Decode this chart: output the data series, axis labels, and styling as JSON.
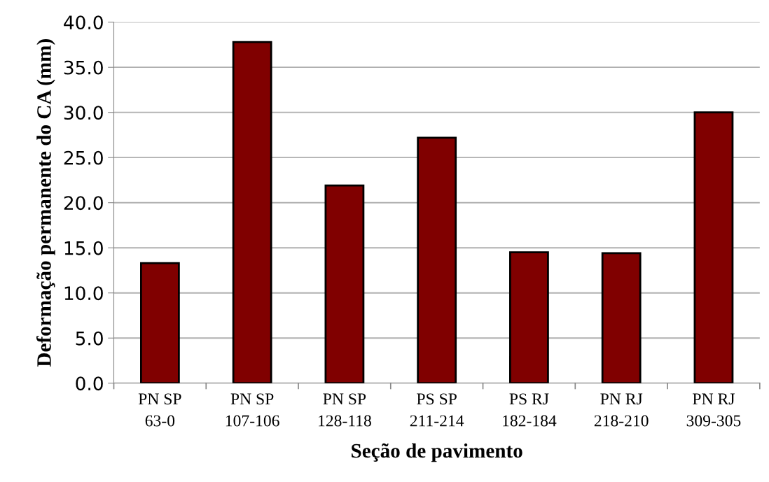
{
  "chart_data": {
    "type": "bar",
    "xlabel": "Seção de pavimento",
    "ylabel": "Deformação permanente do CA (mm)",
    "categories": [
      "PN SP\n63-0",
      "PN SP\n107-106",
      "PN SP\n128-118",
      "PS SP\n211-214",
      "PS RJ\n182-184",
      "PN RJ\n218-210",
      "PN RJ\n309-305"
    ],
    "values": [
      13.3,
      37.8,
      21.9,
      27.2,
      14.5,
      14.4,
      30.0
    ],
    "color": "#800000",
    "ylim": [
      0,
      40
    ],
    "yticks": [
      {
        "value": 0,
        "label": "0.0"
      },
      {
        "value": 5,
        "label": "5.0"
      },
      {
        "value": 10,
        "label": "10.0"
      },
      {
        "value": 15,
        "label": "15.0"
      },
      {
        "value": 20,
        "label": "20.0"
      },
      {
        "value": 25,
        "label": "25.0"
      },
      {
        "value": 30,
        "label": "30.0"
      },
      {
        "value": 35,
        "label": "35.0"
      },
      {
        "value": 40,
        "label": "40.0"
      }
    ],
    "grid": "y"
  }
}
